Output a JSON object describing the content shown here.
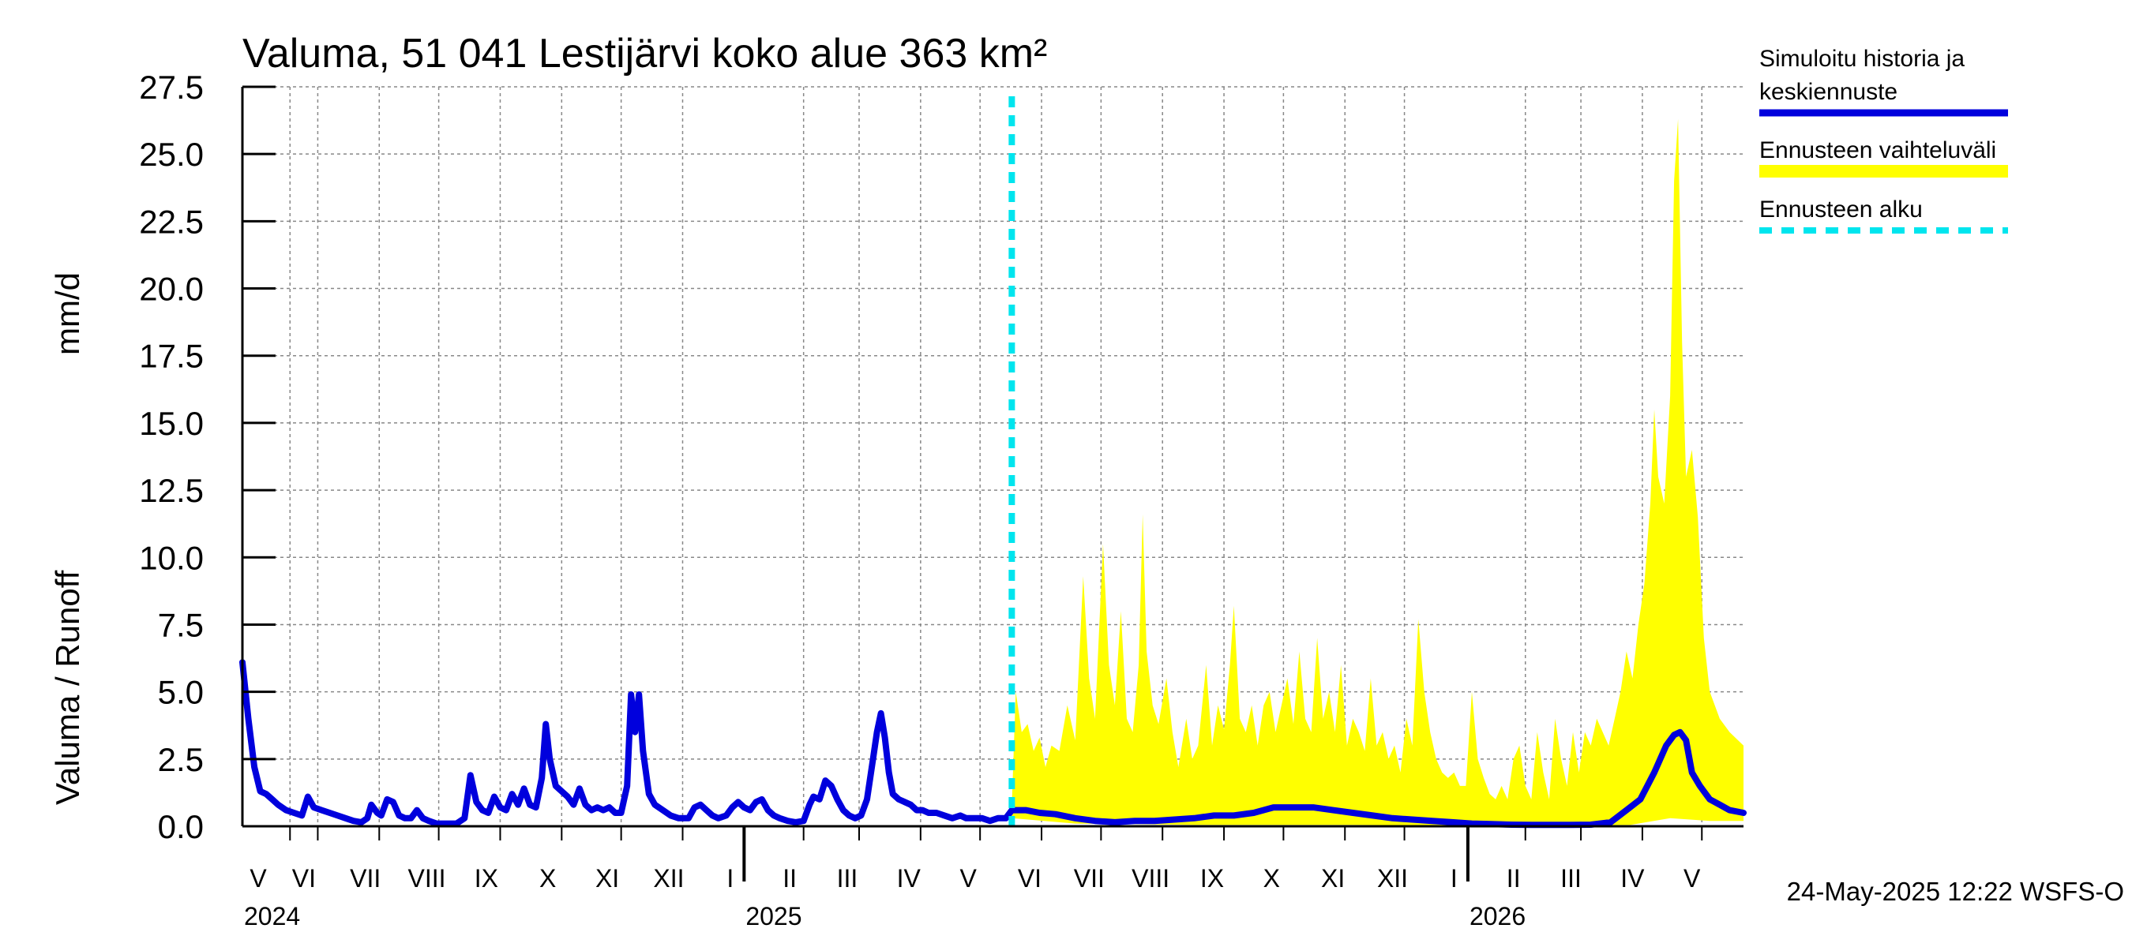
{
  "chart_data": {
    "type": "line",
    "title": "Valuma, 51 041 Lestijärvi koko alue 363 km²",
    "ylabel_left": "Valuma / Runoff",
    "ylabel_unit": "mm/d",
    "ylim": [
      0,
      27.5
    ],
    "y_ticks": [
      "0.0",
      "2.5",
      "5.0",
      "7.5",
      "10.0",
      "12.5",
      "15.0",
      "17.5",
      "20.0",
      "22.5",
      "25.0",
      "27.5"
    ],
    "x_start_day": 0,
    "x_end_day": 757,
    "month_labels": [
      {
        "label": "V",
        "day": 8
      },
      {
        "label": "VI",
        "day": 31
      },
      {
        "label": "VII",
        "day": 62
      },
      {
        "label": "VIII",
        "day": 93
      },
      {
        "label": "IX",
        "day": 123
      },
      {
        "label": "X",
        "day": 154
      },
      {
        "label": "XI",
        "day": 184
      },
      {
        "label": "XII",
        "day": 215
      },
      {
        "label": "I",
        "day": 246
      },
      {
        "label": "II",
        "day": 276
      },
      {
        "label": "III",
        "day": 305
      },
      {
        "label": "IV",
        "day": 336
      },
      {
        "label": "V",
        "day": 366
      },
      {
        "label": "VI",
        "day": 397
      },
      {
        "label": "VII",
        "day": 427
      },
      {
        "label": "VIII",
        "day": 458
      },
      {
        "label": "IX",
        "day": 489
      },
      {
        "label": "X",
        "day": 519
      },
      {
        "label": "XI",
        "day": 550
      },
      {
        "label": "XII",
        "day": 580
      },
      {
        "label": "I",
        "day": 611
      },
      {
        "label": "II",
        "day": 641
      },
      {
        "label": "III",
        "day": 670
      },
      {
        "label": "IV",
        "day": 701
      },
      {
        "label": "V",
        "day": 731
      }
    ],
    "month_boundaries": [
      24,
      38,
      69,
      99,
      130,
      161,
      191,
      222,
      283,
      311,
      342,
      372,
      403,
      433,
      464,
      495,
      525,
      556,
      586,
      647,
      675,
      706,
      736
    ],
    "year_boundaries": [
      253,
      618
    ],
    "year_labels": [
      {
        "label": "2024",
        "day": 0
      },
      {
        "label": "2025",
        "day": 253
      },
      {
        "label": "2026",
        "day": 618
      }
    ],
    "forecast_start_day": 388,
    "series": [
      {
        "name": "Simuloitu historia ja keskiennuste",
        "color": "#0000dd",
        "points": [
          [
            0,
            6.1
          ],
          [
            3,
            4.0
          ],
          [
            6,
            2.2
          ],
          [
            9,
            1.3
          ],
          [
            12,
            1.2
          ],
          [
            15,
            1.0
          ],
          [
            18,
            0.8
          ],
          [
            22,
            0.6
          ],
          [
            26,
            0.5
          ],
          [
            30,
            0.4
          ],
          [
            33,
            1.1
          ],
          [
            36,
            0.7
          ],
          [
            40,
            0.6
          ],
          [
            44,
            0.5
          ],
          [
            48,
            0.4
          ],
          [
            52,
            0.3
          ],
          [
            56,
            0.2
          ],
          [
            60,
            0.15
          ],
          [
            63,
            0.3
          ],
          [
            65,
            0.8
          ],
          [
            68,
            0.5
          ],
          [
            70,
            0.4
          ],
          [
            73,
            1.0
          ],
          [
            76,
            0.9
          ],
          [
            79,
            0.4
          ],
          [
            82,
            0.3
          ],
          [
            85,
            0.3
          ],
          [
            88,
            0.6
          ],
          [
            91,
            0.3
          ],
          [
            94,
            0.2
          ],
          [
            98,
            0.1
          ],
          [
            103,
            0.1
          ],
          [
            108,
            0.1
          ],
          [
            112,
            0.3
          ],
          [
            115,
            1.9
          ],
          [
            118,
            0.9
          ],
          [
            121,
            0.6
          ],
          [
            124,
            0.5
          ],
          [
            127,
            1.1
          ],
          [
            130,
            0.7
          ],
          [
            133,
            0.6
          ],
          [
            136,
            1.2
          ],
          [
            139,
            0.8
          ],
          [
            142,
            1.4
          ],
          [
            145,
            0.8
          ],
          [
            148,
            0.7
          ],
          [
            151,
            1.8
          ],
          [
            153,
            3.8
          ],
          [
            155,
            2.5
          ],
          [
            158,
            1.5
          ],
          [
            161,
            1.3
          ],
          [
            164,
            1.1
          ],
          [
            167,
            0.8
          ],
          [
            170,
            1.4
          ],
          [
            173,
            0.8
          ],
          [
            176,
            0.6
          ],
          [
            179,
            0.7
          ],
          [
            182,
            0.6
          ],
          [
            185,
            0.7
          ],
          [
            188,
            0.5
          ],
          [
            191,
            0.5
          ],
          [
            194,
            1.5
          ],
          [
            196,
            4.9
          ],
          [
            198,
            3.5
          ],
          [
            200,
            4.9
          ],
          [
            202,
            2.8
          ],
          [
            205,
            1.2
          ],
          [
            208,
            0.8
          ],
          [
            212,
            0.6
          ],
          [
            216,
            0.4
          ],
          [
            220,
            0.3
          ],
          [
            225,
            0.3
          ],
          [
            228,
            0.7
          ],
          [
            231,
            0.8
          ],
          [
            234,
            0.6
          ],
          [
            237,
            0.4
          ],
          [
            240,
            0.3
          ],
          [
            244,
            0.4
          ],
          [
            247,
            0.7
          ],
          [
            250,
            0.9
          ],
          [
            253,
            0.7
          ],
          [
            256,
            0.6
          ],
          [
            259,
            0.9
          ],
          [
            262,
            1.0
          ],
          [
            265,
            0.6
          ],
          [
            268,
            0.4
          ],
          [
            271,
            0.3
          ],
          [
            275,
            0.2
          ],
          [
            279,
            0.15
          ],
          [
            283,
            0.2
          ],
          [
            286,
            0.8
          ],
          [
            288,
            1.1
          ],
          [
            291,
            1.0
          ],
          [
            294,
            1.7
          ],
          [
            297,
            1.5
          ],
          [
            300,
            1.0
          ],
          [
            303,
            0.6
          ],
          [
            306,
            0.4
          ],
          [
            309,
            0.3
          ],
          [
            312,
            0.4
          ],
          [
            315,
            1.0
          ],
          [
            318,
            2.5
          ],
          [
            320,
            3.5
          ],
          [
            322,
            4.2
          ],
          [
            324,
            3.3
          ],
          [
            326,
            2.0
          ],
          [
            328,
            1.2
          ],
          [
            331,
            1.0
          ],
          [
            334,
            0.9
          ],
          [
            337,
            0.8
          ],
          [
            340,
            0.6
          ],
          [
            343,
            0.6
          ],
          [
            346,
            0.5
          ],
          [
            350,
            0.5
          ],
          [
            354,
            0.4
          ],
          [
            358,
            0.3
          ],
          [
            362,
            0.4
          ],
          [
            365,
            0.3
          ],
          [
            369,
            0.3
          ],
          [
            373,
            0.3
          ],
          [
            377,
            0.2
          ],
          [
            381,
            0.3
          ],
          [
            385,
            0.3
          ],
          [
            388,
            0.6
          ],
          [
            395,
            0.6
          ],
          [
            402,
            0.5
          ],
          [
            410,
            0.45
          ],
          [
            420,
            0.3
          ],
          [
            430,
            0.2
          ],
          [
            440,
            0.15
          ],
          [
            450,
            0.2
          ],
          [
            460,
            0.2
          ],
          [
            470,
            0.25
          ],
          [
            480,
            0.3
          ],
          [
            490,
            0.4
          ],
          [
            500,
            0.4
          ],
          [
            510,
            0.5
          ],
          [
            520,
            0.7
          ],
          [
            530,
            0.7
          ],
          [
            540,
            0.7
          ],
          [
            550,
            0.6
          ],
          [
            560,
            0.5
          ],
          [
            570,
            0.4
          ],
          [
            580,
            0.3
          ],
          [
            590,
            0.25
          ],
          [
            600,
            0.2
          ],
          [
            610,
            0.15
          ],
          [
            620,
            0.1
          ],
          [
            630,
            0.08
          ],
          [
            640,
            0.06
          ],
          [
            650,
            0.05
          ],
          [
            660,
            0.05
          ],
          [
            670,
            0.05
          ],
          [
            680,
            0.06
          ],
          [
            690,
            0.15
          ],
          [
            698,
            0.6
          ],
          [
            705,
            1.0
          ],
          [
            712,
            2.0
          ],
          [
            718,
            3.0
          ],
          [
            722,
            3.4
          ],
          [
            725,
            3.5
          ],
          [
            728,
            3.2
          ],
          [
            731,
            2.0
          ],
          [
            735,
            1.5
          ],
          [
            740,
            1.0
          ],
          [
            745,
            0.8
          ],
          [
            750,
            0.6
          ],
          [
            757,
            0.5
          ]
        ]
      }
    ],
    "band": {
      "name": "Ennusteen vaihteluväli",
      "color": "#ffff00",
      "upper": [
        [
          388,
          0.8
        ],
        [
          390,
          5.0
        ],
        [
          393,
          3.5
        ],
        [
          396,
          3.8
        ],
        [
          399,
          2.8
        ],
        [
          402,
          3.3
        ],
        [
          405,
          2.2
        ],
        [
          408,
          3.0
        ],
        [
          412,
          2.8
        ],
        [
          416,
          4.5
        ],
        [
          420,
          3.2
        ],
        [
          424,
          9.3
        ],
        [
          427,
          5.5
        ],
        [
          430,
          4.0
        ],
        [
          434,
          10.5
        ],
        [
          437,
          6.0
        ],
        [
          440,
          4.5
        ],
        [
          443,
          8.0
        ],
        [
          446,
          4.0
        ],
        [
          449,
          3.5
        ],
        [
          452,
          6.0
        ],
        [
          454,
          11.6
        ],
        [
          456,
          6.5
        ],
        [
          459,
          4.5
        ],
        [
          462,
          3.8
        ],
        [
          466,
          5.5
        ],
        [
          469,
          3.5
        ],
        [
          472,
          2.2
        ],
        [
          476,
          4.0
        ],
        [
          479,
          2.5
        ],
        [
          482,
          3.0
        ],
        [
          486,
          6.0
        ],
        [
          489,
          3.0
        ],
        [
          492,
          4.5
        ],
        [
          495,
          3.6
        ],
        [
          498,
          6.0
        ],
        [
          500,
          8.2
        ],
        [
          503,
          4.0
        ],
        [
          506,
          3.5
        ],
        [
          509,
          4.5
        ],
        [
          512,
          3.0
        ],
        [
          515,
          4.5
        ],
        [
          518,
          5.0
        ],
        [
          521,
          3.5
        ],
        [
          524,
          4.5
        ],
        [
          527,
          5.5
        ],
        [
          530,
          3.8
        ],
        [
          533,
          6.5
        ],
        [
          536,
          4.0
        ],
        [
          539,
          3.5
        ],
        [
          542,
          7.0
        ],
        [
          545,
          4.0
        ],
        [
          548,
          5.0
        ],
        [
          551,
          3.5
        ],
        [
          554,
          6.0
        ],
        [
          557,
          3.0
        ],
        [
          560,
          4.0
        ],
        [
          563,
          3.5
        ],
        [
          566,
          2.8
        ],
        [
          569,
          5.5
        ],
        [
          572,
          3.0
        ],
        [
          575,
          3.5
        ],
        [
          578,
          2.5
        ],
        [
          581,
          3.0
        ],
        [
          584,
          2.0
        ],
        [
          587,
          4.0
        ],
        [
          590,
          3.0
        ],
        [
          593,
          7.7
        ],
        [
          596,
          5.0
        ],
        [
          599,
          3.5
        ],
        [
          602,
          2.5
        ],
        [
          605,
          2.0
        ],
        [
          608,
          1.8
        ],
        [
          611,
          2.0
        ],
        [
          614,
          1.5
        ],
        [
          617,
          1.5
        ],
        [
          620,
          5.0
        ],
        [
          623,
          2.5
        ],
        [
          626,
          1.8
        ],
        [
          629,
          1.2
        ],
        [
          632,
          1.0
        ],
        [
          635,
          1.5
        ],
        [
          638,
          1.0
        ],
        [
          641,
          2.5
        ],
        [
          644,
          3.0
        ],
        [
          647,
          1.5
        ],
        [
          650,
          1.0
        ],
        [
          653,
          3.5
        ],
        [
          656,
          2.0
        ],
        [
          659,
          1.0
        ],
        [
          662,
          4.0
        ],
        [
          665,
          2.5
        ],
        [
          668,
          1.5
        ],
        [
          671,
          3.5
        ],
        [
          674,
          2.0
        ],
        [
          677,
          3.5
        ],
        [
          680,
          3.0
        ],
        [
          683,
          4.0
        ],
        [
          686,
          3.5
        ],
        [
          689,
          3.0
        ],
        [
          692,
          4.0
        ],
        [
          695,
          5.0
        ],
        [
          698,
          6.5
        ],
        [
          701,
          5.5
        ],
        [
          704,
          7.5
        ],
        [
          707,
          9.0
        ],
        [
          710,
          12.0
        ],
        [
          712,
          15.5
        ],
        [
          714,
          13.0
        ],
        [
          717,
          12.0
        ],
        [
          720,
          16.0
        ],
        [
          722,
          24.0
        ],
        [
          724,
          26.3
        ],
        [
          726,
          18.0
        ],
        [
          728,
          13.0
        ],
        [
          731,
          14.0
        ],
        [
          734,
          11.5
        ],
        [
          737,
          7.0
        ],
        [
          740,
          5.0
        ],
        [
          745,
          4.0
        ],
        [
          750,
          3.5
        ],
        [
          757,
          3.0
        ]
      ],
      "lower": [
        [
          388,
          0.3
        ],
        [
          420,
          0.1
        ],
        [
          480,
          0.05
        ],
        [
          560,
          0.05
        ],
        [
          640,
          0.02
        ],
        [
          700,
          0.05
        ],
        [
          720,
          0.3
        ],
        [
          740,
          0.2
        ],
        [
          757,
          0.2
        ]
      ]
    },
    "legend": [
      {
        "label": "Simuloitu historia ja keskiennuste",
        "style": "solid-blue"
      },
      {
        "label": "Ennusteen vaihteluväli",
        "style": "solid-yellow"
      },
      {
        "label": "Ennusteen alku",
        "style": "dashed-cyan"
      }
    ]
  },
  "legend_labels": {
    "item1_line1": "Simuloitu historia ja",
    "item1_line2": "keskiennuste",
    "item2": "Ennusteen vaihteluväli",
    "item3": "Ennusteen alku"
  },
  "timestamp": "24-May-2025 12:22 WSFS-O",
  "colors": {
    "series": "#0000dd",
    "band": "#ffff00",
    "forecast": "#00e5ee",
    "grid": "#888888"
  }
}
